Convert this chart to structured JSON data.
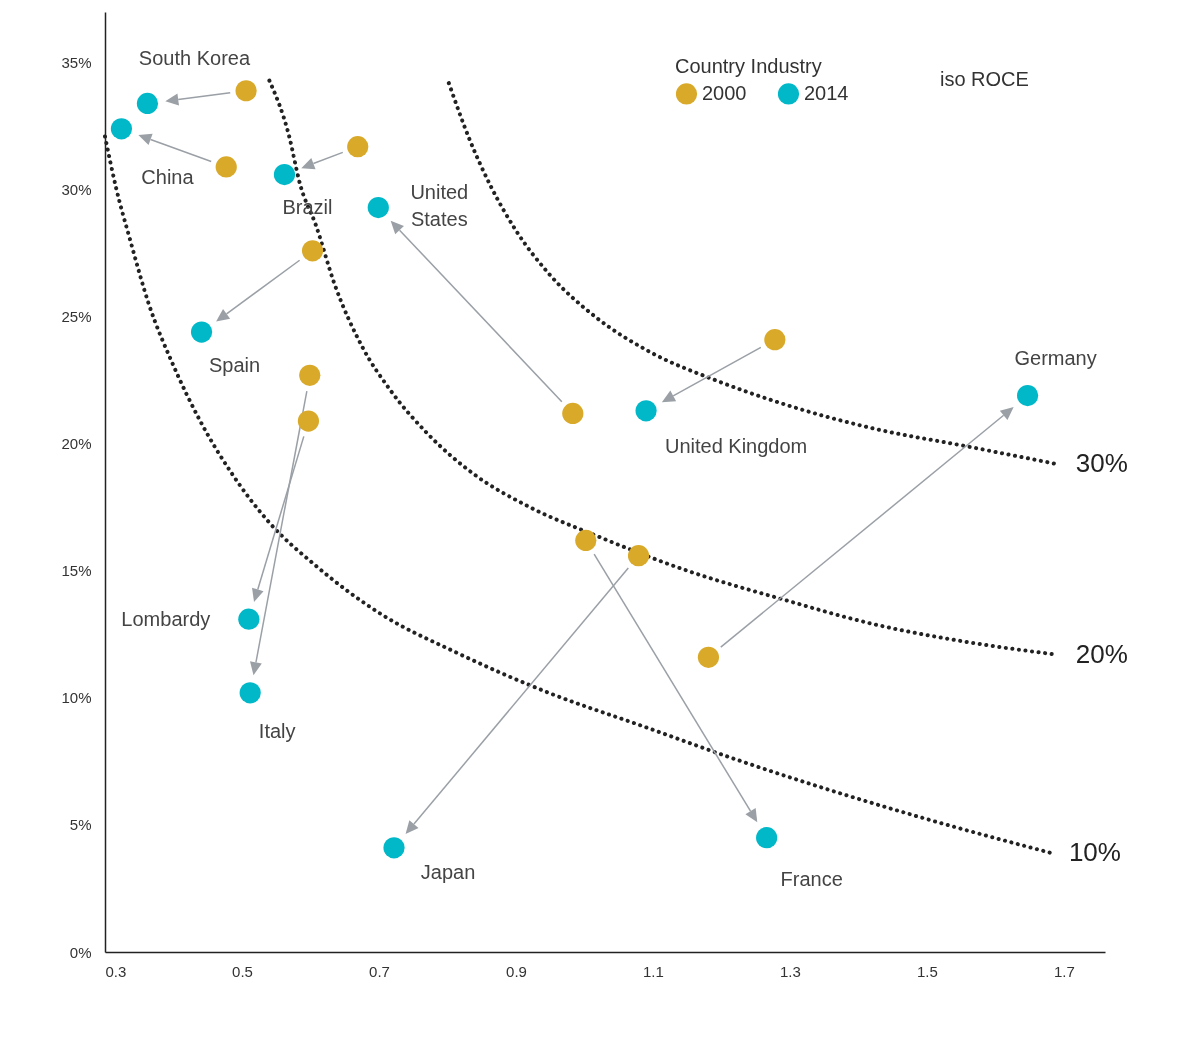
{
  "chart_data": {
    "type": "scatter",
    "legend_title": "Country Industry",
    "legend": "top right",
    "grid": false,
    "xlim": [
      0.3,
      1.76
    ],
    "ylim": [
      0,
      37
    ],
    "xticks": [
      0.3,
      0.5,
      0.7,
      0.9,
      1.1,
      1.3,
      1.5,
      1.7
    ],
    "yticks": [
      {
        "value": 0,
        "label": "0%"
      },
      {
        "value": 5,
        "label": "5%"
      },
      {
        "value": 10,
        "label": "10%"
      },
      {
        "value": 15,
        "label": "15%"
      },
      {
        "value": 20,
        "label": "20%"
      },
      {
        "value": 25,
        "label": "25%"
      },
      {
        "value": 30,
        "label": "30%"
      },
      {
        "value": 35,
        "label": "35%"
      }
    ],
    "series": [
      {
        "name": "2000",
        "color": "#d9a92a",
        "x": [
          0.506,
          0.477,
          0.669,
          0.983,
          0.603,
          1.278,
          0.597,
          0.599,
          1.181,
          1.079,
          1.002
        ],
        "values": [
          33.9,
          30.9,
          31.7,
          21.2,
          27.6,
          24.1,
          20.9,
          22.7,
          11.6,
          15.6,
          16.2
        ]
      },
      {
        "name": "2014",
        "color": "#00b8c8",
        "x": [
          0.362,
          0.324,
          0.562,
          0.699,
          0.441,
          1.09,
          0.51,
          0.512,
          1.647,
          0.722,
          1.266
        ],
        "values": [
          33.4,
          32.4,
          30.6,
          29.3,
          24.4,
          21.3,
          13.1,
          10.2,
          21.9,
          4.1,
          4.5
        ]
      },
      {
        "name": "30%",
        "type": "line",
        "line_style": "dotted",
        "color": "#222222",
        "x": [
          0.802,
          0.832,
          0.864,
          0.9,
          0.948,
          1.016,
          1.097,
          1.192,
          1.287,
          1.423,
          1.559,
          1.691
        ],
        "values": [
          34.2,
          32.0,
          30.1,
          28.4,
          26.7,
          25.0,
          23.6,
          22.5,
          21.6,
          20.6,
          19.9,
          19.2
        ]
      },
      {
        "name": "20%",
        "type": "line",
        "line_style": "dotted",
        "color": "#222222",
        "x": [
          0.54,
          0.568,
          0.585,
          0.608,
          0.635,
          0.676,
          0.717,
          0.771,
          0.839,
          0.921,
          1.016,
          1.151,
          1.287,
          1.423,
          1.559,
          1.691
        ],
        "values": [
          34.3,
          32.2,
          30.2,
          28.6,
          26.3,
          23.8,
          22.1,
          20.4,
          18.8,
          17.5,
          16.4,
          15.0,
          13.9,
          12.9,
          12.2,
          11.7
        ]
      },
      {
        "name": "10%",
        "type": "line",
        "line_style": "dotted",
        "color": "#222222",
        "x": [
          0.3,
          0.316,
          0.337,
          0.364,
          0.398,
          0.439,
          0.486,
          0.54,
          0.608,
          0.703,
          0.812,
          0.948,
          1.084,
          1.219,
          1.355,
          1.491,
          1.681
        ],
        "values": [
          32.1,
          30.1,
          28.0,
          25.5,
          23.2,
          20.9,
          18.8,
          16.9,
          15.2,
          13.3,
          11.8,
          10.2,
          8.9,
          7.6,
          6.4,
          5.3,
          3.9
        ]
      }
    ],
    "annotations": [
      {
        "text": "South Korea",
        "x": 0.362,
        "y": 33.4
      },
      {
        "text": "China",
        "x": 0.324,
        "y": 32.4
      },
      {
        "text": "Brazil",
        "x": 0.562,
        "y": 30.6
      },
      {
        "text": "United\nStates",
        "x": 0.699,
        "y": 29.3
      },
      {
        "text": "Spain",
        "x": 0.441,
        "y": 24.4
      },
      {
        "text": "United Kingdom",
        "x": 1.09,
        "y": 21.3
      },
      {
        "text": "Germany",
        "x": 1.647,
        "y": 21.9
      },
      {
        "text": "Lombardy",
        "x": 0.51,
        "y": 13.1
      },
      {
        "text": "Italy",
        "x": 0.512,
        "y": 10.2
      },
      {
        "text": "Japan",
        "x": 0.722,
        "y": 4.1
      },
      {
        "text": "France",
        "x": 1.266,
        "y": 4.5
      },
      "iso ROCE"
    ]
  }
}
